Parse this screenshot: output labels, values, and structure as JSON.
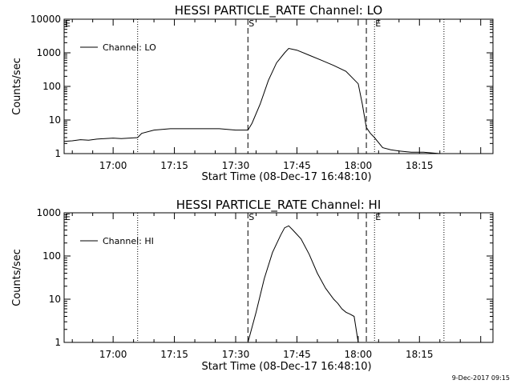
{
  "chart_data": [
    {
      "type": "line",
      "title": "HESSI PARTICLE_RATE Channel: LO",
      "xlabel": "Start Time (08-Dec-17 16:48:10)",
      "ylabel": "Counts/sec",
      "y_scale": "log",
      "ylim": [
        1,
        10000
      ],
      "xlim": [
        "16:48",
        "18:33"
      ],
      "x_ticks": [
        "17:00",
        "17:15",
        "17:30",
        "17:45",
        "18:00",
        "18:15"
      ],
      "y_ticks": [
        "1",
        "10",
        "100",
        "1000",
        "10000"
      ],
      "legend": "top-left",
      "grid": false,
      "series": [
        {
          "name": "Channel: LO",
          "x": [
            "16:48",
            "16:50",
            "16:52",
            "16:54",
            "16:56",
            "16:58",
            "17:00",
            "17:02",
            "17:04",
            "17:06",
            "17:07",
            "17:10",
            "17:14",
            "17:18",
            "17:22",
            "17:26",
            "17:30",
            "17:33",
            "17:34",
            "17:36",
            "17:38",
            "17:40",
            "17:42",
            "17:43",
            "17:45",
            "17:48",
            "17:51",
            "17:54",
            "17:57",
            "18:00",
            "18:01",
            "18:02",
            "18:03",
            "18:04",
            "18:06",
            "18:08",
            "18:10",
            "18:13",
            "18:16",
            "18:20",
            "18:22",
            "18:24"
          ],
          "values": [
            2.3,
            2.4,
            2.6,
            2.5,
            2.7,
            2.8,
            2.9,
            2.8,
            2.9,
            3.0,
            4.0,
            5.0,
            5.5,
            5.5,
            5.5,
            5.5,
            5.0,
            5.0,
            8,
            30,
            150,
            500,
            1000,
            1350,
            1200,
            850,
            600,
            420,
            280,
            120,
            30,
            6,
            4,
            3,
            1.5,
            1.3,
            1.2,
            1.1,
            1.1,
            1,
            1,
            1
          ]
        }
      ],
      "vlines": [
        {
          "x": "17:06",
          "style": "dotted"
        },
        {
          "x": "17:33",
          "style": "dashed",
          "label": "S"
        },
        {
          "x": "18:02",
          "style": "dashed"
        },
        {
          "x": "18:04",
          "style": "dotted",
          "label": "E"
        },
        {
          "x": "18:21",
          "style": "dotted"
        }
      ],
      "corner_label": "E"
    },
    {
      "type": "line",
      "title": "HESSI PARTICLE_RATE Channel: HI",
      "xlabel": "Start Time (08-Dec-17 16:48:10)",
      "ylabel": "Counts/sec",
      "y_scale": "log",
      "ylim": [
        1,
        1000
      ],
      "xlim": [
        "16:48",
        "18:33"
      ],
      "x_ticks": [
        "17:00",
        "17:15",
        "17:30",
        "17:45",
        "18:00",
        "18:15"
      ],
      "y_ticks": [
        "1",
        "10",
        "100",
        "1000"
      ],
      "legend": "top-left",
      "grid": false,
      "series": [
        {
          "name": "Channel: HI",
          "x": [
            "17:33",
            "17:35",
            "17:37",
            "17:39",
            "17:41",
            "17:42",
            "17:43",
            "17:44",
            "17:46",
            "17:48",
            "17:50",
            "17:52",
            "17:54",
            "17:55",
            "17:56",
            "17:57",
            "17:58",
            "17:59",
            "18:00"
          ],
          "values": [
            1,
            5,
            30,
            120,
            300,
            450,
            500,
            400,
            250,
            110,
            40,
            18,
            10,
            8,
            6,
            5,
            4.5,
            4,
            1
          ]
        }
      ],
      "vlines": [
        {
          "x": "17:06",
          "style": "dotted"
        },
        {
          "x": "17:33",
          "style": "dashed",
          "label": "S"
        },
        {
          "x": "18:02",
          "style": "dashed"
        },
        {
          "x": "18:04",
          "style": "dotted",
          "label": "E"
        },
        {
          "x": "18:21",
          "style": "dotted"
        }
      ],
      "corner_label": "E"
    }
  ],
  "footer": {
    "timestamp": "9-Dec-2017 09:15"
  }
}
